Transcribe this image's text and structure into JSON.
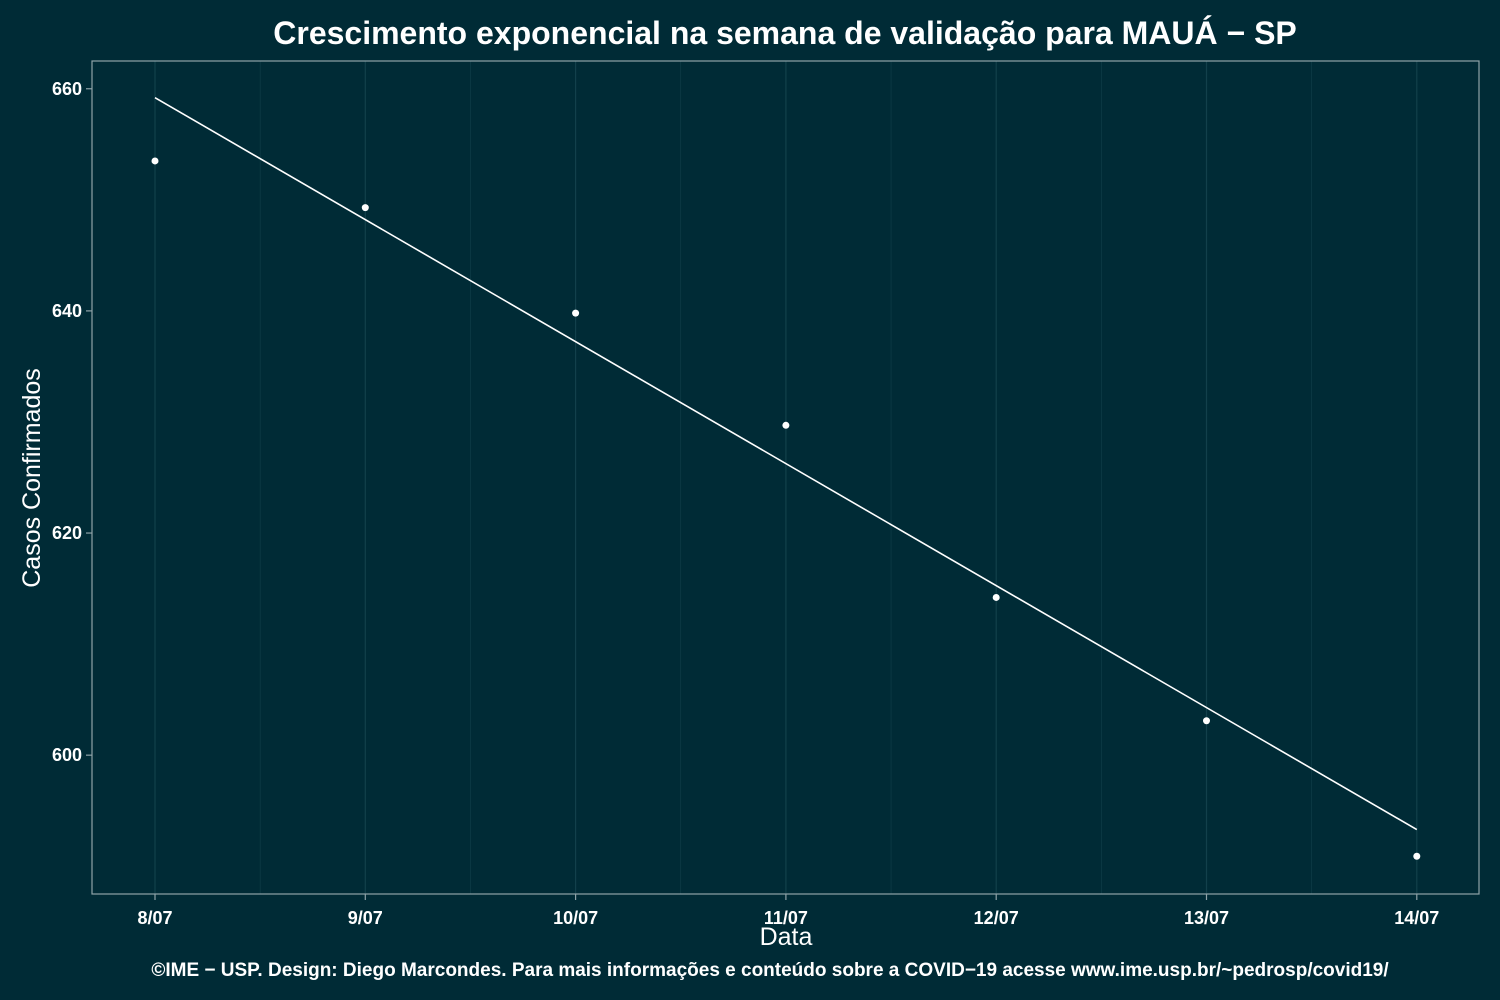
{
  "chart_data": {
    "type": "scatter",
    "title": "Crescimento exponencial na semana de validação para MAUÁ − SP",
    "xlabel": "Data",
    "ylabel": "Casos Confirmados",
    "x": [
      "8/07",
      "9/07",
      "10/07",
      "11/07",
      "12/07",
      "13/07",
      "14/07"
    ],
    "points": [
      {
        "x": "8/07",
        "y": 653.5
      },
      {
        "x": "9/07",
        "y": 649.3
      },
      {
        "x": "10/07",
        "y": 639.8
      },
      {
        "x": "11/07",
        "y": 629.7
      },
      {
        "x": "12/07",
        "y": 614.2
      },
      {
        "x": "13/07",
        "y": 603.1
      },
      {
        "x": "14/07",
        "y": 590.9
      }
    ],
    "fit_line": {
      "start": {
        "x": "8/07",
        "y": 659.2
      },
      "end": {
        "x": "14/07",
        "y": 593.3
      }
    },
    "yticks": [
      600,
      620,
      640,
      660
    ],
    "ylim": [
      587.5,
      662.5
    ],
    "grid": true,
    "colors": {
      "background": "#002b36",
      "grid": "#12404b",
      "axis": "#8fa3a8",
      "points": "#ffffff",
      "line": "#ffffff",
      "text": "#ffffff"
    }
  },
  "footer": "©IME − USP. Design: Diego Marcondes. Para mais informações e conteúdo sobre a COVID−19 acesse www.ime.usp.br/~pedrosp/covid19/"
}
